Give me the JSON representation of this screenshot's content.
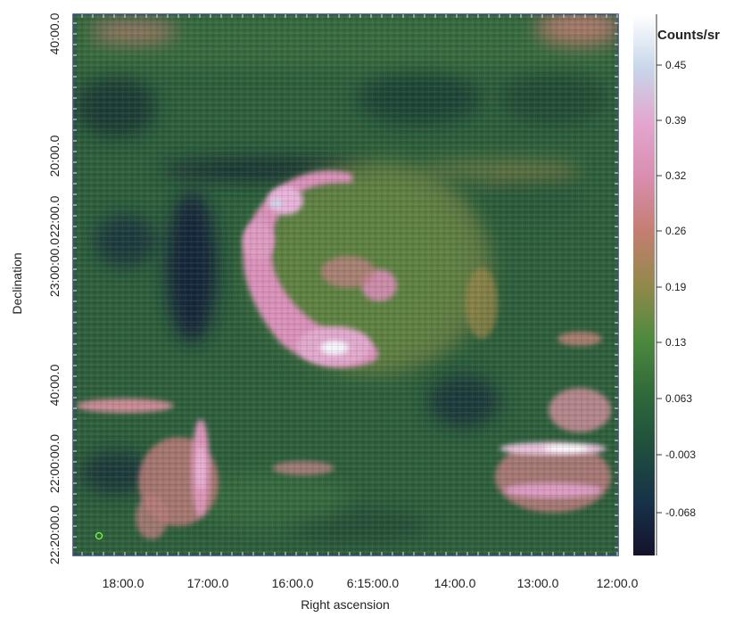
{
  "chart_data": {
    "type": "heatmap",
    "title": "",
    "xlabel": "Right ascension",
    "ylabel": "Declination",
    "x_ticks": [
      "18:00.0",
      "17:00.0",
      "16:00.0",
      "6:15:00.0",
      "14:00.0",
      "13:00.0",
      "12:00.0"
    ],
    "y_ticks": [
      "40:00.0",
      "20:00.0",
      "22:00.0",
      "23:00:00.0",
      "40:00.0",
      "22:00:00.0",
      "22:20:00.0"
    ],
    "colorbar": {
      "label": "Counts/sr",
      "ticks": [
        "0.45",
        "0.39",
        "0.32",
        "0.26",
        "0.19",
        "0.13",
        "0.063",
        "-0.003",
        "-0.068"
      ],
      "range": [
        -0.12,
        0.5
      ]
    },
    "colormap": [
      "#15122b",
      "#17324a",
      "#1f4f3d",
      "#2f6a3a",
      "#4d8a3e",
      "#93894a",
      "#c47e72",
      "#d98eb0",
      "#e3a6cf",
      "#c7d6ea",
      "#ffffff"
    ],
    "beam_marker_color": "#7cff3c",
    "grid": false
  }
}
